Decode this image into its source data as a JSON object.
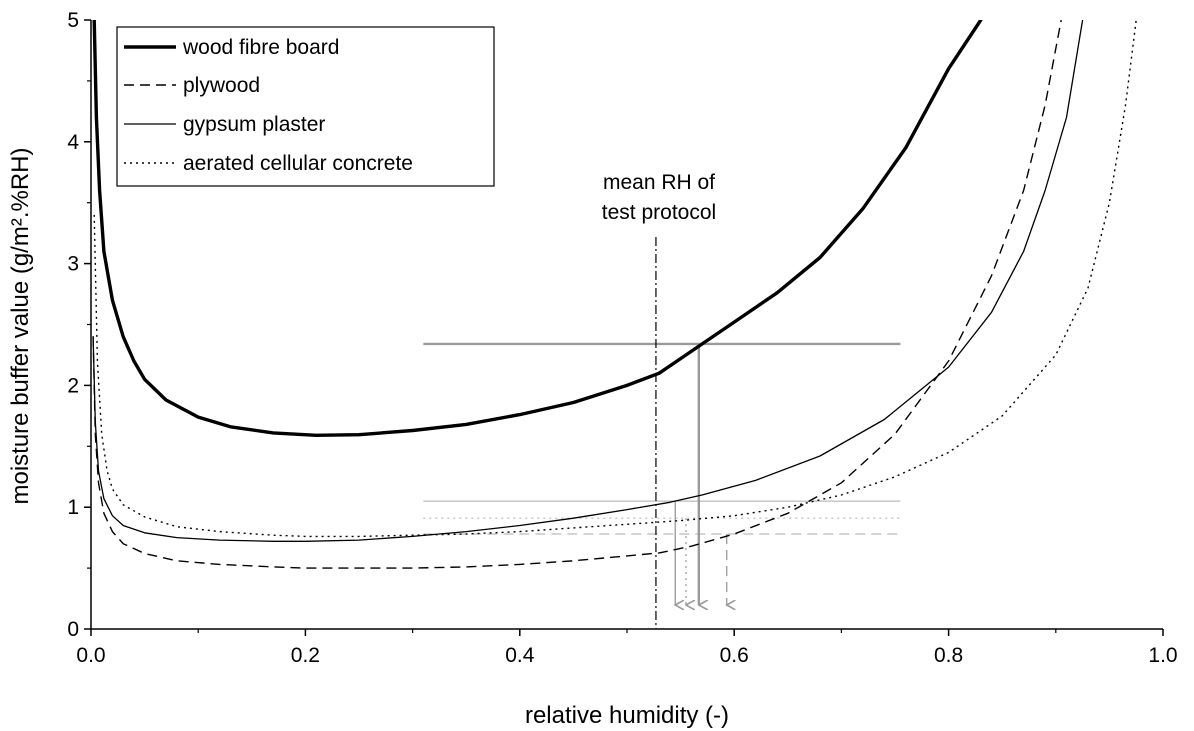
{
  "chart_data": {
    "type": "line",
    "xlabel": "relative humidity (-)",
    "ylabel": "moisture buffer value (g/m².%RH)",
    "xlim": [
      0,
      1
    ],
    "ylim": [
      0,
      5
    ],
    "x_ticks": [
      "0.0",
      "0.2",
      "0.4",
      "0.6",
      "0.8",
      "1.0"
    ],
    "y_ticks": [
      "0",
      "1",
      "2",
      "3",
      "4",
      "5"
    ],
    "grid": false,
    "legend_position": "top-left",
    "series": [
      {
        "name": "wood fibre board",
        "style": "solid-thick",
        "color": "#000000",
        "points": [
          [
            0.003,
            5.0
          ],
          [
            0.005,
            4.2
          ],
          [
            0.008,
            3.6
          ],
          [
            0.012,
            3.1
          ],
          [
            0.02,
            2.7
          ],
          [
            0.03,
            2.4
          ],
          [
            0.04,
            2.2
          ],
          [
            0.05,
            2.05
          ],
          [
            0.07,
            1.88
          ],
          [
            0.1,
            1.74
          ],
          [
            0.13,
            1.66
          ],
          [
            0.17,
            1.61
          ],
          [
            0.21,
            1.59
          ],
          [
            0.25,
            1.595
          ],
          [
            0.3,
            1.63
          ],
          [
            0.35,
            1.68
          ],
          [
            0.4,
            1.76
          ],
          [
            0.45,
            1.86
          ],
          [
            0.5,
            2.0
          ],
          [
            0.53,
            2.1
          ],
          [
            0.55,
            2.22
          ],
          [
            0.57,
            2.34
          ],
          [
            0.6,
            2.52
          ],
          [
            0.64,
            2.76
          ],
          [
            0.68,
            3.05
          ],
          [
            0.72,
            3.45
          ],
          [
            0.76,
            3.95
          ],
          [
            0.8,
            4.6
          ],
          [
            0.83,
            5.0
          ]
        ]
      },
      {
        "name": "plywood",
        "style": "dashed",
        "color": "#000000",
        "points": [
          [
            0.002,
            2.4
          ],
          [
            0.004,
            1.6
          ],
          [
            0.007,
            1.2
          ],
          [
            0.012,
            0.95
          ],
          [
            0.02,
            0.8
          ],
          [
            0.03,
            0.7
          ],
          [
            0.05,
            0.62
          ],
          [
            0.08,
            0.56
          ],
          [
            0.12,
            0.53
          ],
          [
            0.17,
            0.51
          ],
          [
            0.2,
            0.5
          ],
          [
            0.25,
            0.5
          ],
          [
            0.3,
            0.5
          ],
          [
            0.35,
            0.51
          ],
          [
            0.4,
            0.53
          ],
          [
            0.45,
            0.56
          ],
          [
            0.5,
            0.6
          ],
          [
            0.53,
            0.625
          ],
          [
            0.56,
            0.68
          ],
          [
            0.6,
            0.78
          ],
          [
            0.65,
            0.95
          ],
          [
            0.7,
            1.2
          ],
          [
            0.75,
            1.6
          ],
          [
            0.8,
            2.2
          ],
          [
            0.84,
            2.9
          ],
          [
            0.87,
            3.6
          ],
          [
            0.89,
            4.3
          ],
          [
            0.905,
            5.0
          ]
        ]
      },
      {
        "name": "gypsum plaster",
        "style": "solid-thin",
        "color": "#000000",
        "points": [
          [
            0.002,
            2.4
          ],
          [
            0.004,
            1.7
          ],
          [
            0.007,
            1.3
          ],
          [
            0.012,
            1.07
          ],
          [
            0.02,
            0.93
          ],
          [
            0.03,
            0.85
          ],
          [
            0.05,
            0.79
          ],
          [
            0.08,
            0.75
          ],
          [
            0.12,
            0.73
          ],
          [
            0.17,
            0.72
          ],
          [
            0.2,
            0.72
          ],
          [
            0.25,
            0.73
          ],
          [
            0.3,
            0.76
          ],
          [
            0.35,
            0.8
          ],
          [
            0.4,
            0.85
          ],
          [
            0.45,
            0.91
          ],
          [
            0.5,
            0.98
          ],
          [
            0.54,
            1.04
          ],
          [
            0.57,
            1.1
          ],
          [
            0.62,
            1.22
          ],
          [
            0.68,
            1.42
          ],
          [
            0.74,
            1.72
          ],
          [
            0.8,
            2.15
          ],
          [
            0.84,
            2.6
          ],
          [
            0.87,
            3.1
          ],
          [
            0.89,
            3.6
          ],
          [
            0.91,
            4.2
          ],
          [
            0.925,
            5.0
          ]
        ]
      },
      {
        "name": "aerated cellular concrete",
        "style": "dotted",
        "color": "#000000",
        "points": [
          [
            0.003,
            3.4
          ],
          [
            0.006,
            2.2
          ],
          [
            0.01,
            1.6
          ],
          [
            0.015,
            1.3
          ],
          [
            0.02,
            1.15
          ],
          [
            0.03,
            1.02
          ],
          [
            0.05,
            0.92
          ],
          [
            0.08,
            0.84
          ],
          [
            0.12,
            0.8
          ],
          [
            0.17,
            0.77
          ],
          [
            0.2,
            0.76
          ],
          [
            0.25,
            0.76
          ],
          [
            0.3,
            0.77
          ],
          [
            0.35,
            0.78
          ],
          [
            0.4,
            0.8
          ],
          [
            0.45,
            0.83
          ],
          [
            0.5,
            0.86
          ],
          [
            0.55,
            0.89
          ],
          [
            0.6,
            0.93
          ],
          [
            0.65,
            1.0
          ],
          [
            0.7,
            1.1
          ],
          [
            0.75,
            1.25
          ],
          [
            0.8,
            1.45
          ],
          [
            0.85,
            1.75
          ],
          [
            0.9,
            2.25
          ],
          [
            0.93,
            2.8
          ],
          [
            0.95,
            3.5
          ],
          [
            0.965,
            4.3
          ],
          [
            0.975,
            5.0
          ]
        ]
      }
    ],
    "reference_line": {
      "x": 0.527,
      "label_lines": [
        "mean RH of",
        "test protocol"
      ]
    },
    "horizontal_markers": [
      {
        "series": "wood fibre board",
        "y": 2.34,
        "x_from": 0.31,
        "x_to": 0.755,
        "style": "solid-thick",
        "color": "#999999"
      },
      {
        "series": "gypsum plaster",
        "y": 1.05,
        "x_from": 0.31,
        "x_to": 0.755,
        "style": "solid-thin",
        "color": "#aaaaaa"
      },
      {
        "series": "aerated cellular concrete",
        "y": 0.91,
        "x_from": 0.31,
        "x_to": 0.755,
        "style": "dotted",
        "color": "#aaaaaa"
      },
      {
        "series": "plywood",
        "y": 0.78,
        "x_from": 0.31,
        "x_to": 0.755,
        "style": "dashed",
        "color": "#aaaaaa"
      }
    ],
    "arrows": [
      {
        "series": "gypsum plaster",
        "x": 0.545,
        "y_from": 1.05,
        "style": "solid-thin",
        "color": "#999999"
      },
      {
        "series": "aerated cellular concrete",
        "x": 0.555,
        "y_from": 0.91,
        "style": "dotted",
        "color": "#999999"
      },
      {
        "series": "wood fibre board",
        "x": 0.567,
        "y_from": 2.34,
        "style": "solid-thick",
        "color": "#999999"
      },
      {
        "series": "plywood",
        "x": 0.593,
        "y_from": 0.78,
        "style": "dashed",
        "color": "#999999"
      }
    ]
  }
}
